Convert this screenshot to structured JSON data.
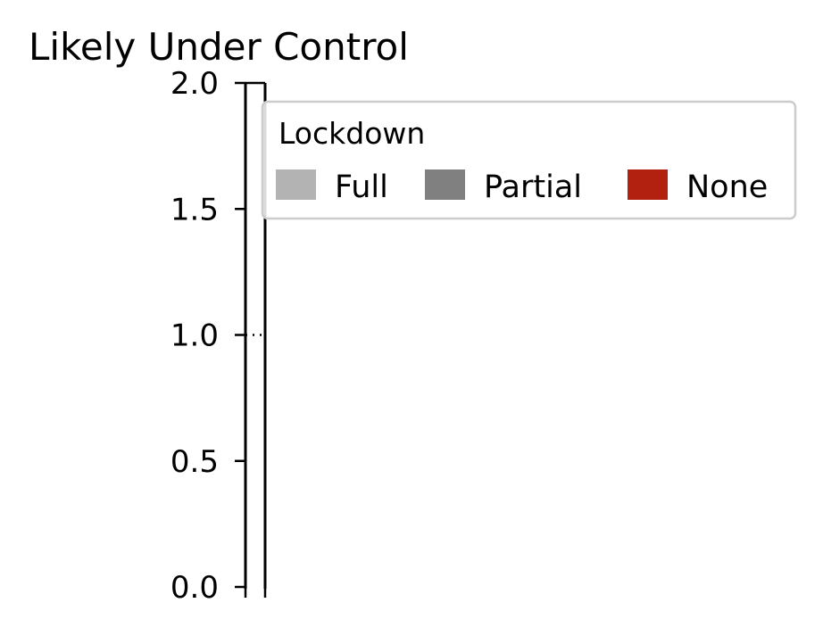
{
  "chart_data": {
    "type": "bar",
    "title": "Likely Under Control",
    "xlabel": "",
    "ylabel": "",
    "ylim": [
      0,
      2.0
    ],
    "yticks": [
      "0.0",
      "0.5",
      "1.0",
      "1.5",
      "2.0"
    ],
    "ytick_values": [
      0.0,
      0.5,
      1.0,
      1.5,
      2.0
    ],
    "reference_line": 1.0,
    "legend": {
      "title": "Lockdown",
      "placement": "top-right",
      "entries": [
        {
          "label": "Full",
          "color": "#b3b3b3"
        },
        {
          "label": "Partial",
          "color": "#808080"
        },
        {
          "label": "None",
          "color": "#b22010"
        }
      ]
    },
    "grid": false
  }
}
